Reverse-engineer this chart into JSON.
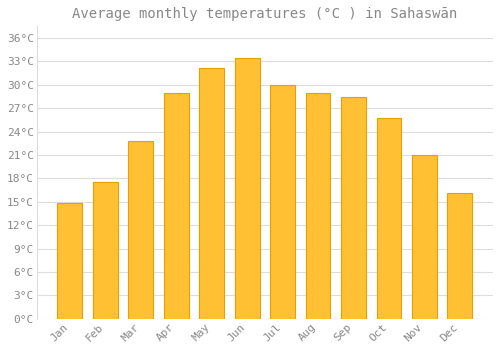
{
  "title": "Average monthly temperatures (°C ) in Sahaswān",
  "months": [
    "Jan",
    "Feb",
    "Mar",
    "Apr",
    "May",
    "Jun",
    "Jul",
    "Aug",
    "Sep",
    "Oct",
    "Nov",
    "Dec"
  ],
  "temperatures": [
    14.9,
    17.6,
    22.8,
    28.9,
    32.1,
    33.4,
    30.0,
    28.9,
    28.5,
    25.8,
    21.0,
    16.1
  ],
  "bar_color": "#FFC033",
  "bar_edge_color": "#E8A000",
  "background_color": "#FFFFFF",
  "grid_color": "#DDDDDD",
  "ytick_labels": [
    "0°C",
    "3°C",
    "6°C",
    "9°C",
    "12°C",
    "15°C",
    "18°C",
    "21°C",
    "24°C",
    "27°C",
    "30°C",
    "33°C",
    "36°C"
  ],
  "ytick_values": [
    0,
    3,
    6,
    9,
    12,
    15,
    18,
    21,
    24,
    27,
    30,
    33,
    36
  ],
  "ylim": [
    0,
    37.5
  ],
  "title_fontsize": 10,
  "tick_fontsize": 8,
  "font_color": "#888888",
  "label_rotation": 45
}
